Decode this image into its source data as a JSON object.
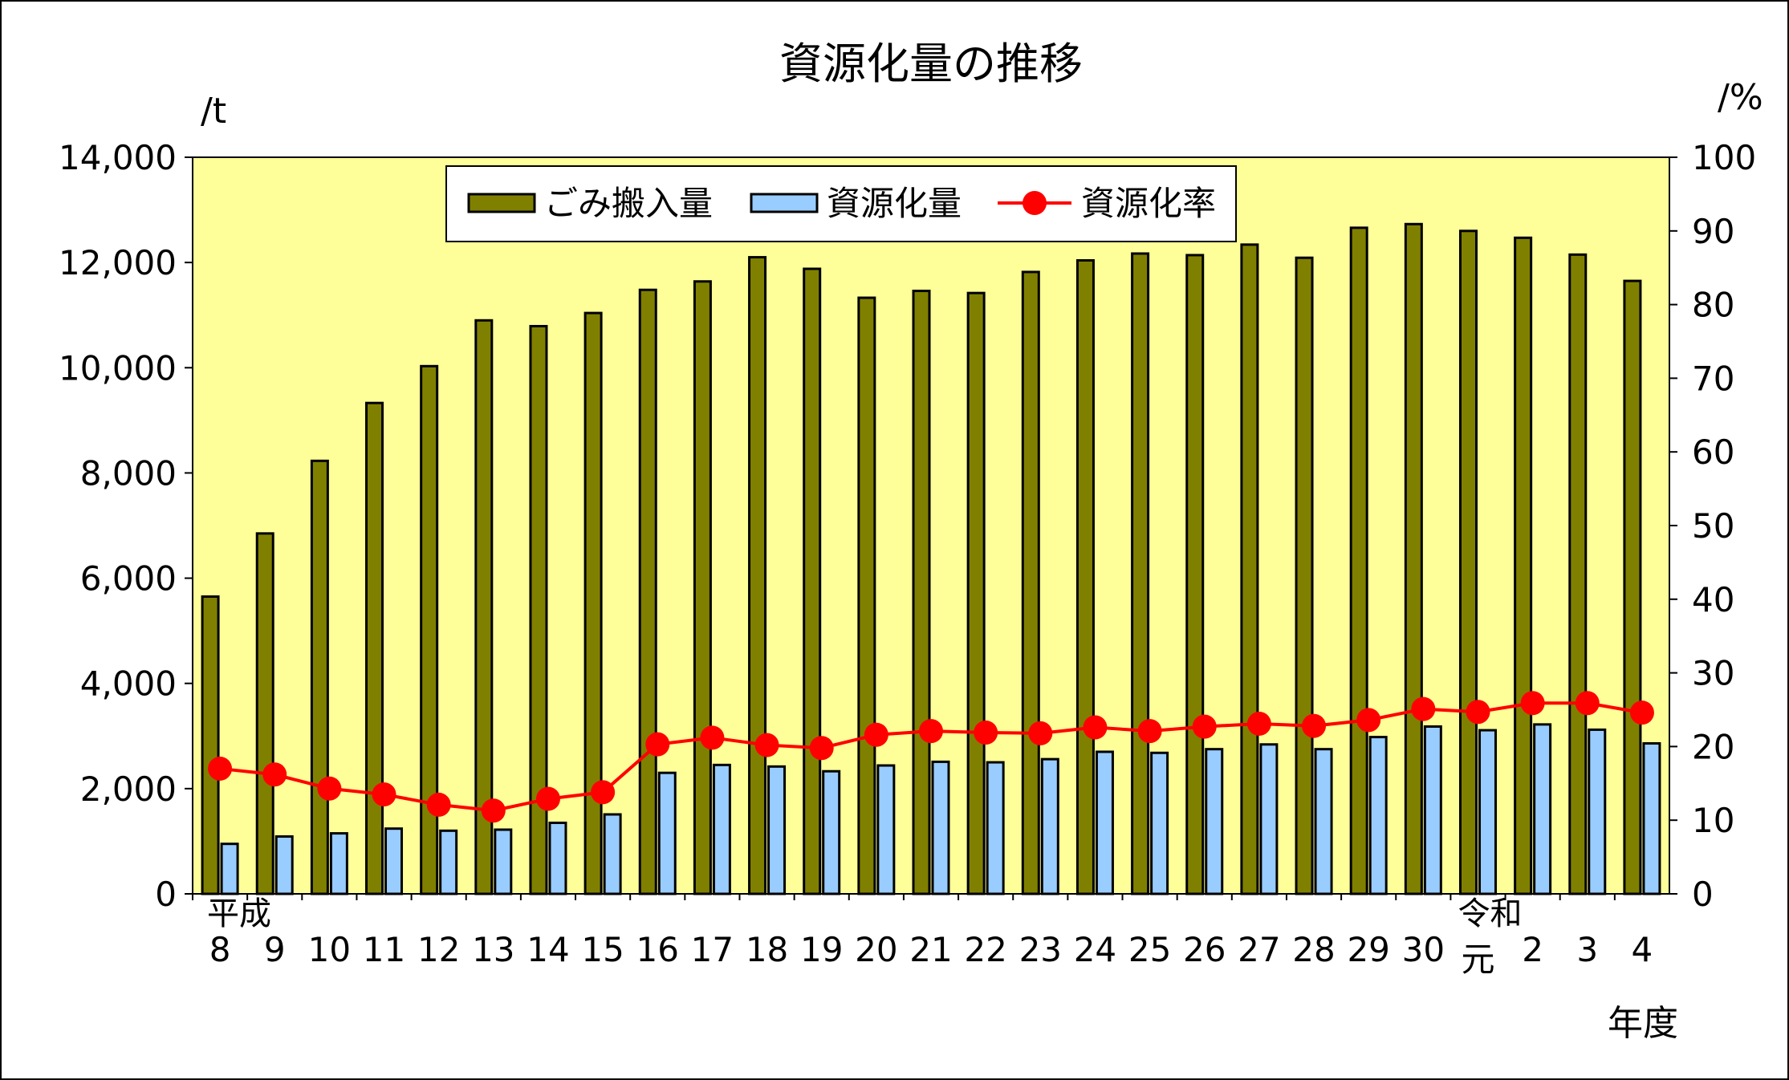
{
  "chart_data": {
    "type": "bar",
    "title": "資源化量の推移",
    "left_unit": "/t",
    "right_unit": "/%",
    "xlabel": "年度",
    "categories": [
      "8",
      "9",
      "10",
      "11",
      "12",
      "13",
      "14",
      "15",
      "16",
      "17",
      "18",
      "19",
      "20",
      "21",
      "22",
      "23",
      "24",
      "25",
      "26",
      "27",
      "28",
      "29",
      "30",
      "元",
      "2",
      "3",
      "4"
    ],
    "era_labels": [
      {
        "text": "平成",
        "at": "8"
      },
      {
        "text": "令和",
        "at": "元"
      }
    ],
    "ylim_left": [
      0,
      14000
    ],
    "yticks_left": [
      "0",
      "2,000",
      "4,000",
      "6,000",
      "8,000",
      "10,000",
      "12,000",
      "14,000"
    ],
    "ylim_right": [
      0,
      100
    ],
    "yticks_right": [
      "0",
      "10",
      "20",
      "30",
      "40",
      "50",
      "60",
      "70",
      "80",
      "90",
      "100"
    ],
    "legend_position": "top-center",
    "grid": false,
    "plot_background": "#ffff99",
    "series": [
      {
        "name": "ごみ搬入量",
        "kind": "bar",
        "axis": "left",
        "color": "#808000",
        "values": [
          5650,
          6850,
          8230,
          9330,
          10030,
          10900,
          10790,
          11040,
          11480,
          11640,
          12100,
          11880,
          11330,
          11460,
          11420,
          11820,
          12040,
          12170,
          12140,
          12340,
          12090,
          12660,
          12730,
          12600,
          12470,
          12150,
          11650
        ]
      },
      {
        "name": "資源化量",
        "kind": "bar",
        "axis": "left",
        "color": "#99ccff",
        "values": [
          950,
          1090,
          1150,
          1240,
          1200,
          1220,
          1350,
          1510,
          2300,
          2450,
          2420,
          2330,
          2440,
          2510,
          2500,
          2560,
          2700,
          2680,
          2750,
          2840,
          2750,
          2980,
          3180,
          3110,
          3220,
          3120,
          2860
        ]
      },
      {
        "name": "資源化率",
        "kind": "line",
        "axis": "right",
        "color": "#ff0000",
        "values": [
          17.0,
          16.2,
          14.3,
          13.5,
          12.1,
          11.3,
          12.9,
          13.8,
          20.3,
          21.2,
          20.2,
          19.8,
          21.6,
          22.1,
          21.9,
          21.8,
          22.6,
          22.1,
          22.7,
          23.1,
          22.8,
          23.6,
          25.1,
          24.7,
          25.9,
          25.9,
          24.6
        ]
      }
    ]
  }
}
